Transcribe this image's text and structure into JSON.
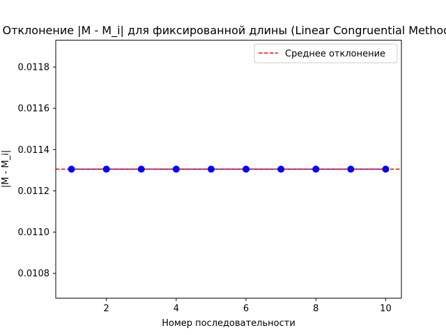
{
  "chart_data": {
    "type": "scatter",
    "title": "Отклонение |M - M_i| для фиксированной длины (Linear Congruential Method)",
    "xlabel": "Номер последовательности",
    "ylabel": "|M - M_i|",
    "xlim": [
      0.55,
      10.45
    ],
    "ylim": [
      0.01068,
      0.01193
    ],
    "xticks": [
      2,
      4,
      6,
      8,
      10
    ],
    "yticks": [
      0.0108,
      0.011,
      0.0112,
      0.0114,
      0.0116,
      0.0118
    ],
    "ytick_labels": [
      "0.0108",
      "0.0110",
      "0.0112",
      "0.0114",
      "0.0116",
      "0.0118"
    ],
    "grid": false,
    "legend_position": "top-right",
    "series": [
      {
        "kind": "line-markers",
        "color": "#0000ff",
        "x": [
          1,
          2,
          3,
          4,
          5,
          6,
          7,
          8,
          9,
          10
        ],
        "y": [
          0.011305,
          0.011305,
          0.011305,
          0.011305,
          0.011305,
          0.011305,
          0.011305,
          0.011305,
          0.011305,
          0.011305
        ]
      },
      {
        "name": "Среднее отклонение",
        "kind": "hline",
        "color": "#ff0000",
        "dash": "dashed",
        "y": 0.011305
      }
    ]
  }
}
